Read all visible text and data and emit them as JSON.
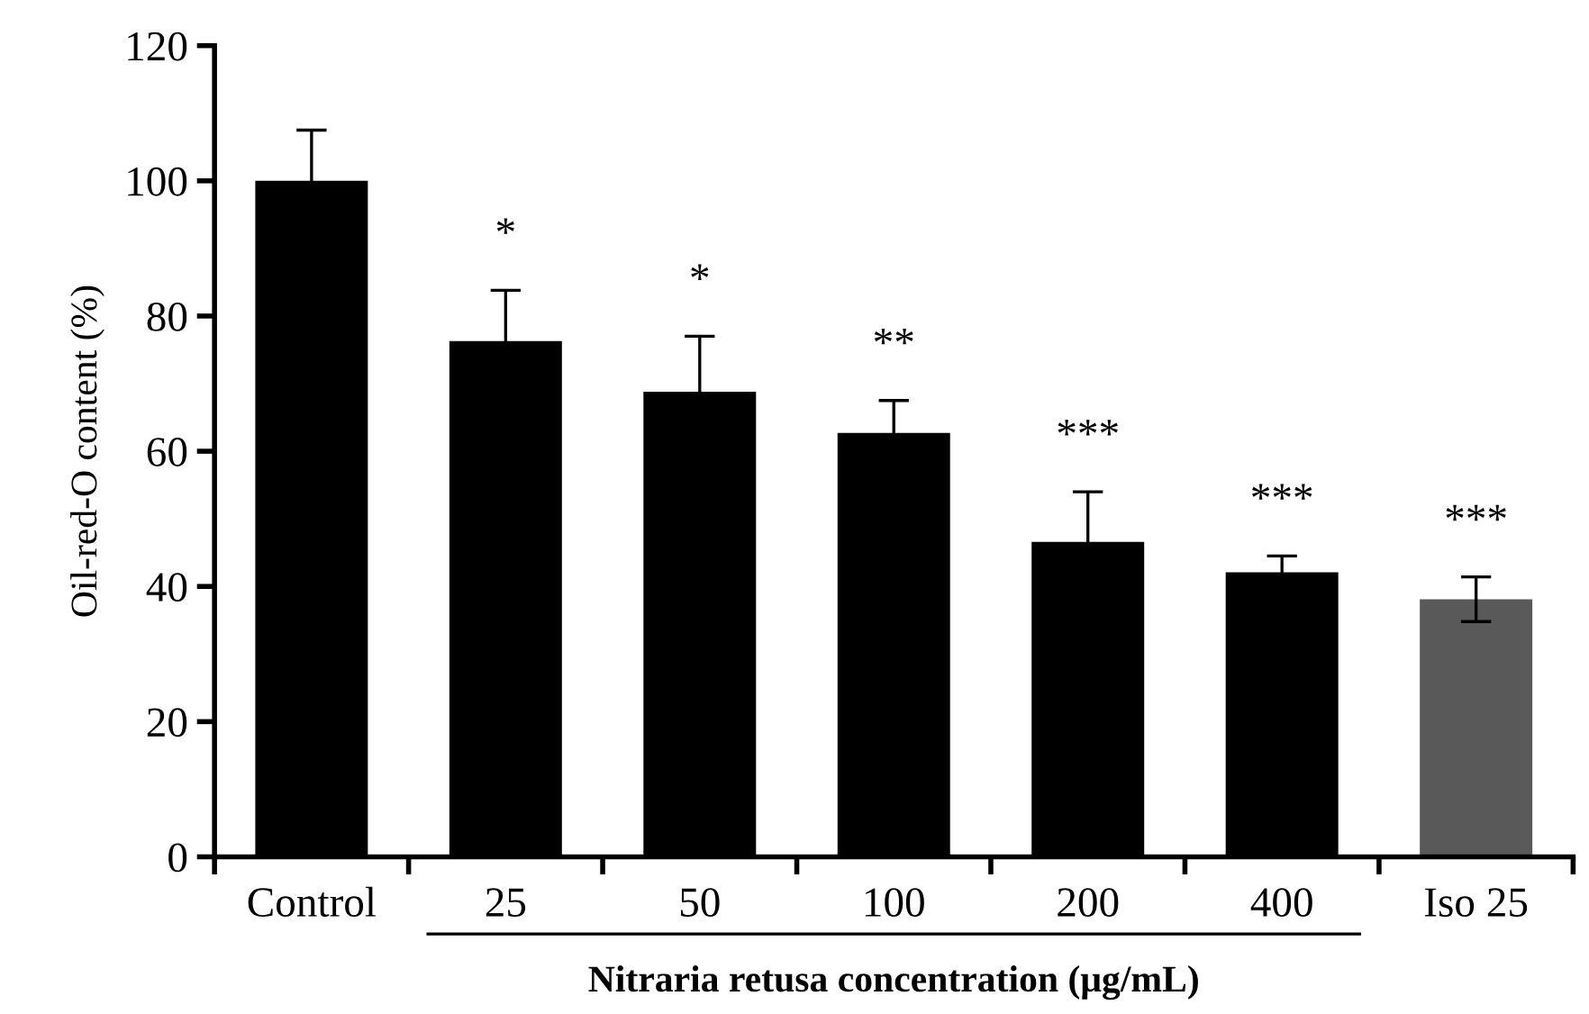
{
  "chart_data": {
    "type": "bar",
    "ylabel": "Oil-red-O content (%)",
    "xlabel": "Nitraria retusa concentration (μg/mL)",
    "categories": [
      "Control",
      "25",
      "50",
      "100",
      "200",
      "400",
      "Iso 25"
    ],
    "values": [
      100,
      76.3,
      68.8,
      62.7,
      46.6,
      42.1,
      38.1
    ],
    "errors": [
      7.5,
      7.5,
      8.2,
      4.8,
      7.4,
      2.4,
      3.3
    ],
    "colors": [
      "#000000",
      "#000000",
      "#000000",
      "#000000",
      "#000000",
      "#000000",
      "#595959"
    ],
    "ylim": [
      0,
      120
    ],
    "yticks": [
      0,
      20,
      40,
      60,
      80,
      100,
      120
    ],
    "grid": false,
    "annotations": [
      "*",
      "*",
      "**",
      "***",
      "***",
      "***"
    ]
  }
}
